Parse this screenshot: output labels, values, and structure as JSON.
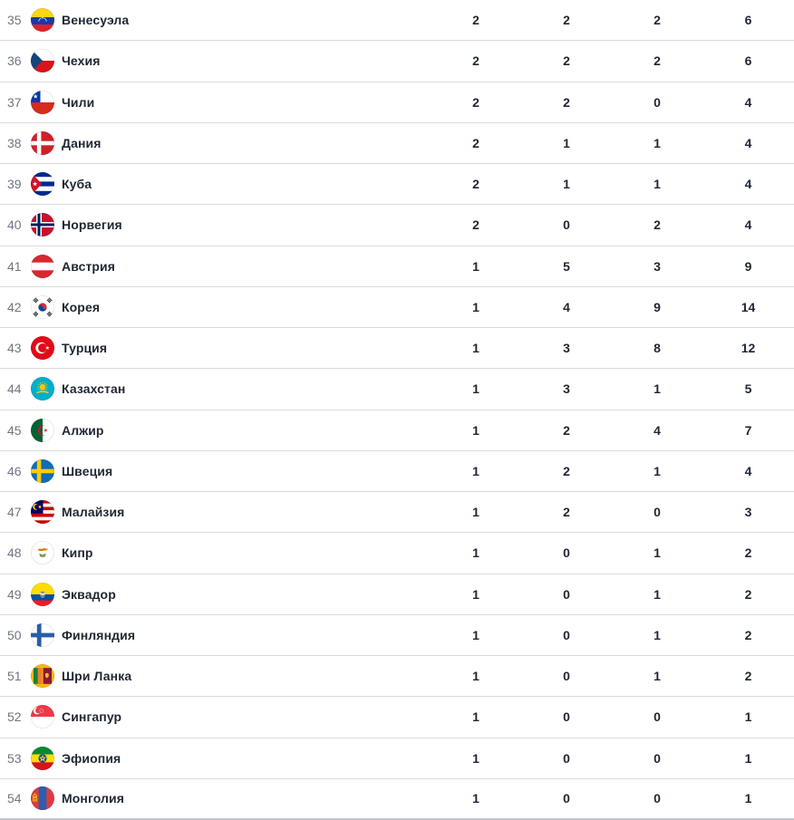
{
  "colors": {
    "row_background": "#ffffff",
    "row_divider": "#d8dadf",
    "table_bottom_border": "#c2c7d0",
    "rank_text": "#6f7683",
    "primary_text": "#1f2733"
  },
  "table": {
    "rows": [
      {
        "rank": "35",
        "country": "Венесуэла",
        "flag": "venezuela",
        "gold": "2",
        "silver": "2",
        "bronze": "2",
        "total": "6"
      },
      {
        "rank": "36",
        "country": "Чехия",
        "flag": "czechia",
        "gold": "2",
        "silver": "2",
        "bronze": "2",
        "total": "6"
      },
      {
        "rank": "37",
        "country": "Чили",
        "flag": "chile",
        "gold": "2",
        "silver": "2",
        "bronze": "0",
        "total": "4"
      },
      {
        "rank": "38",
        "country": "Дания",
        "flag": "denmark",
        "gold": "2",
        "silver": "1",
        "bronze": "1",
        "total": "4"
      },
      {
        "rank": "39",
        "country": "Куба",
        "flag": "cuba",
        "gold": "2",
        "silver": "1",
        "bronze": "1",
        "total": "4"
      },
      {
        "rank": "40",
        "country": "Норвегия",
        "flag": "norway",
        "gold": "2",
        "silver": "0",
        "bronze": "2",
        "total": "4"
      },
      {
        "rank": "41",
        "country": "Австрия",
        "flag": "austria",
        "gold": "1",
        "silver": "5",
        "bronze": "3",
        "total": "9"
      },
      {
        "rank": "42",
        "country": "Корея",
        "flag": "south-korea",
        "gold": "1",
        "silver": "4",
        "bronze": "9",
        "total": "14"
      },
      {
        "rank": "43",
        "country": "Турция",
        "flag": "turkey",
        "gold": "1",
        "silver": "3",
        "bronze": "8",
        "total": "12"
      },
      {
        "rank": "44",
        "country": "Казахстан",
        "flag": "kazakhstan",
        "gold": "1",
        "silver": "3",
        "bronze": "1",
        "total": "5"
      },
      {
        "rank": "45",
        "country": "Алжир",
        "flag": "algeria",
        "gold": "1",
        "silver": "2",
        "bronze": "4",
        "total": "7"
      },
      {
        "rank": "46",
        "country": "Швеция",
        "flag": "sweden",
        "gold": "1",
        "silver": "2",
        "bronze": "1",
        "total": "4"
      },
      {
        "rank": "47",
        "country": "Малайзия",
        "flag": "malaysia",
        "gold": "1",
        "silver": "2",
        "bronze": "0",
        "total": "3"
      },
      {
        "rank": "48",
        "country": "Кипр",
        "flag": "cyprus",
        "gold": "1",
        "silver": "0",
        "bronze": "1",
        "total": "2"
      },
      {
        "rank": "49",
        "country": "Эквадор",
        "flag": "ecuador",
        "gold": "1",
        "silver": "0",
        "bronze": "1",
        "total": "2"
      },
      {
        "rank": "50",
        "country": "Финляндия",
        "flag": "finland",
        "gold": "1",
        "silver": "0",
        "bronze": "1",
        "total": "2"
      },
      {
        "rank": "51",
        "country": "Шри Ланка",
        "flag": "sri-lanka",
        "gold": "1",
        "silver": "0",
        "bronze": "1",
        "total": "2"
      },
      {
        "rank": "52",
        "country": "Сингапур",
        "flag": "singapore",
        "gold": "1",
        "silver": "0",
        "bronze": "0",
        "total": "1"
      },
      {
        "rank": "53",
        "country": "Эфиопия",
        "flag": "ethiopia",
        "gold": "1",
        "silver": "0",
        "bronze": "0",
        "total": "1"
      },
      {
        "rank": "54",
        "country": "Монголия",
        "flag": "mongolia",
        "gold": "1",
        "silver": "0",
        "bronze": "0",
        "total": "1"
      }
    ]
  }
}
